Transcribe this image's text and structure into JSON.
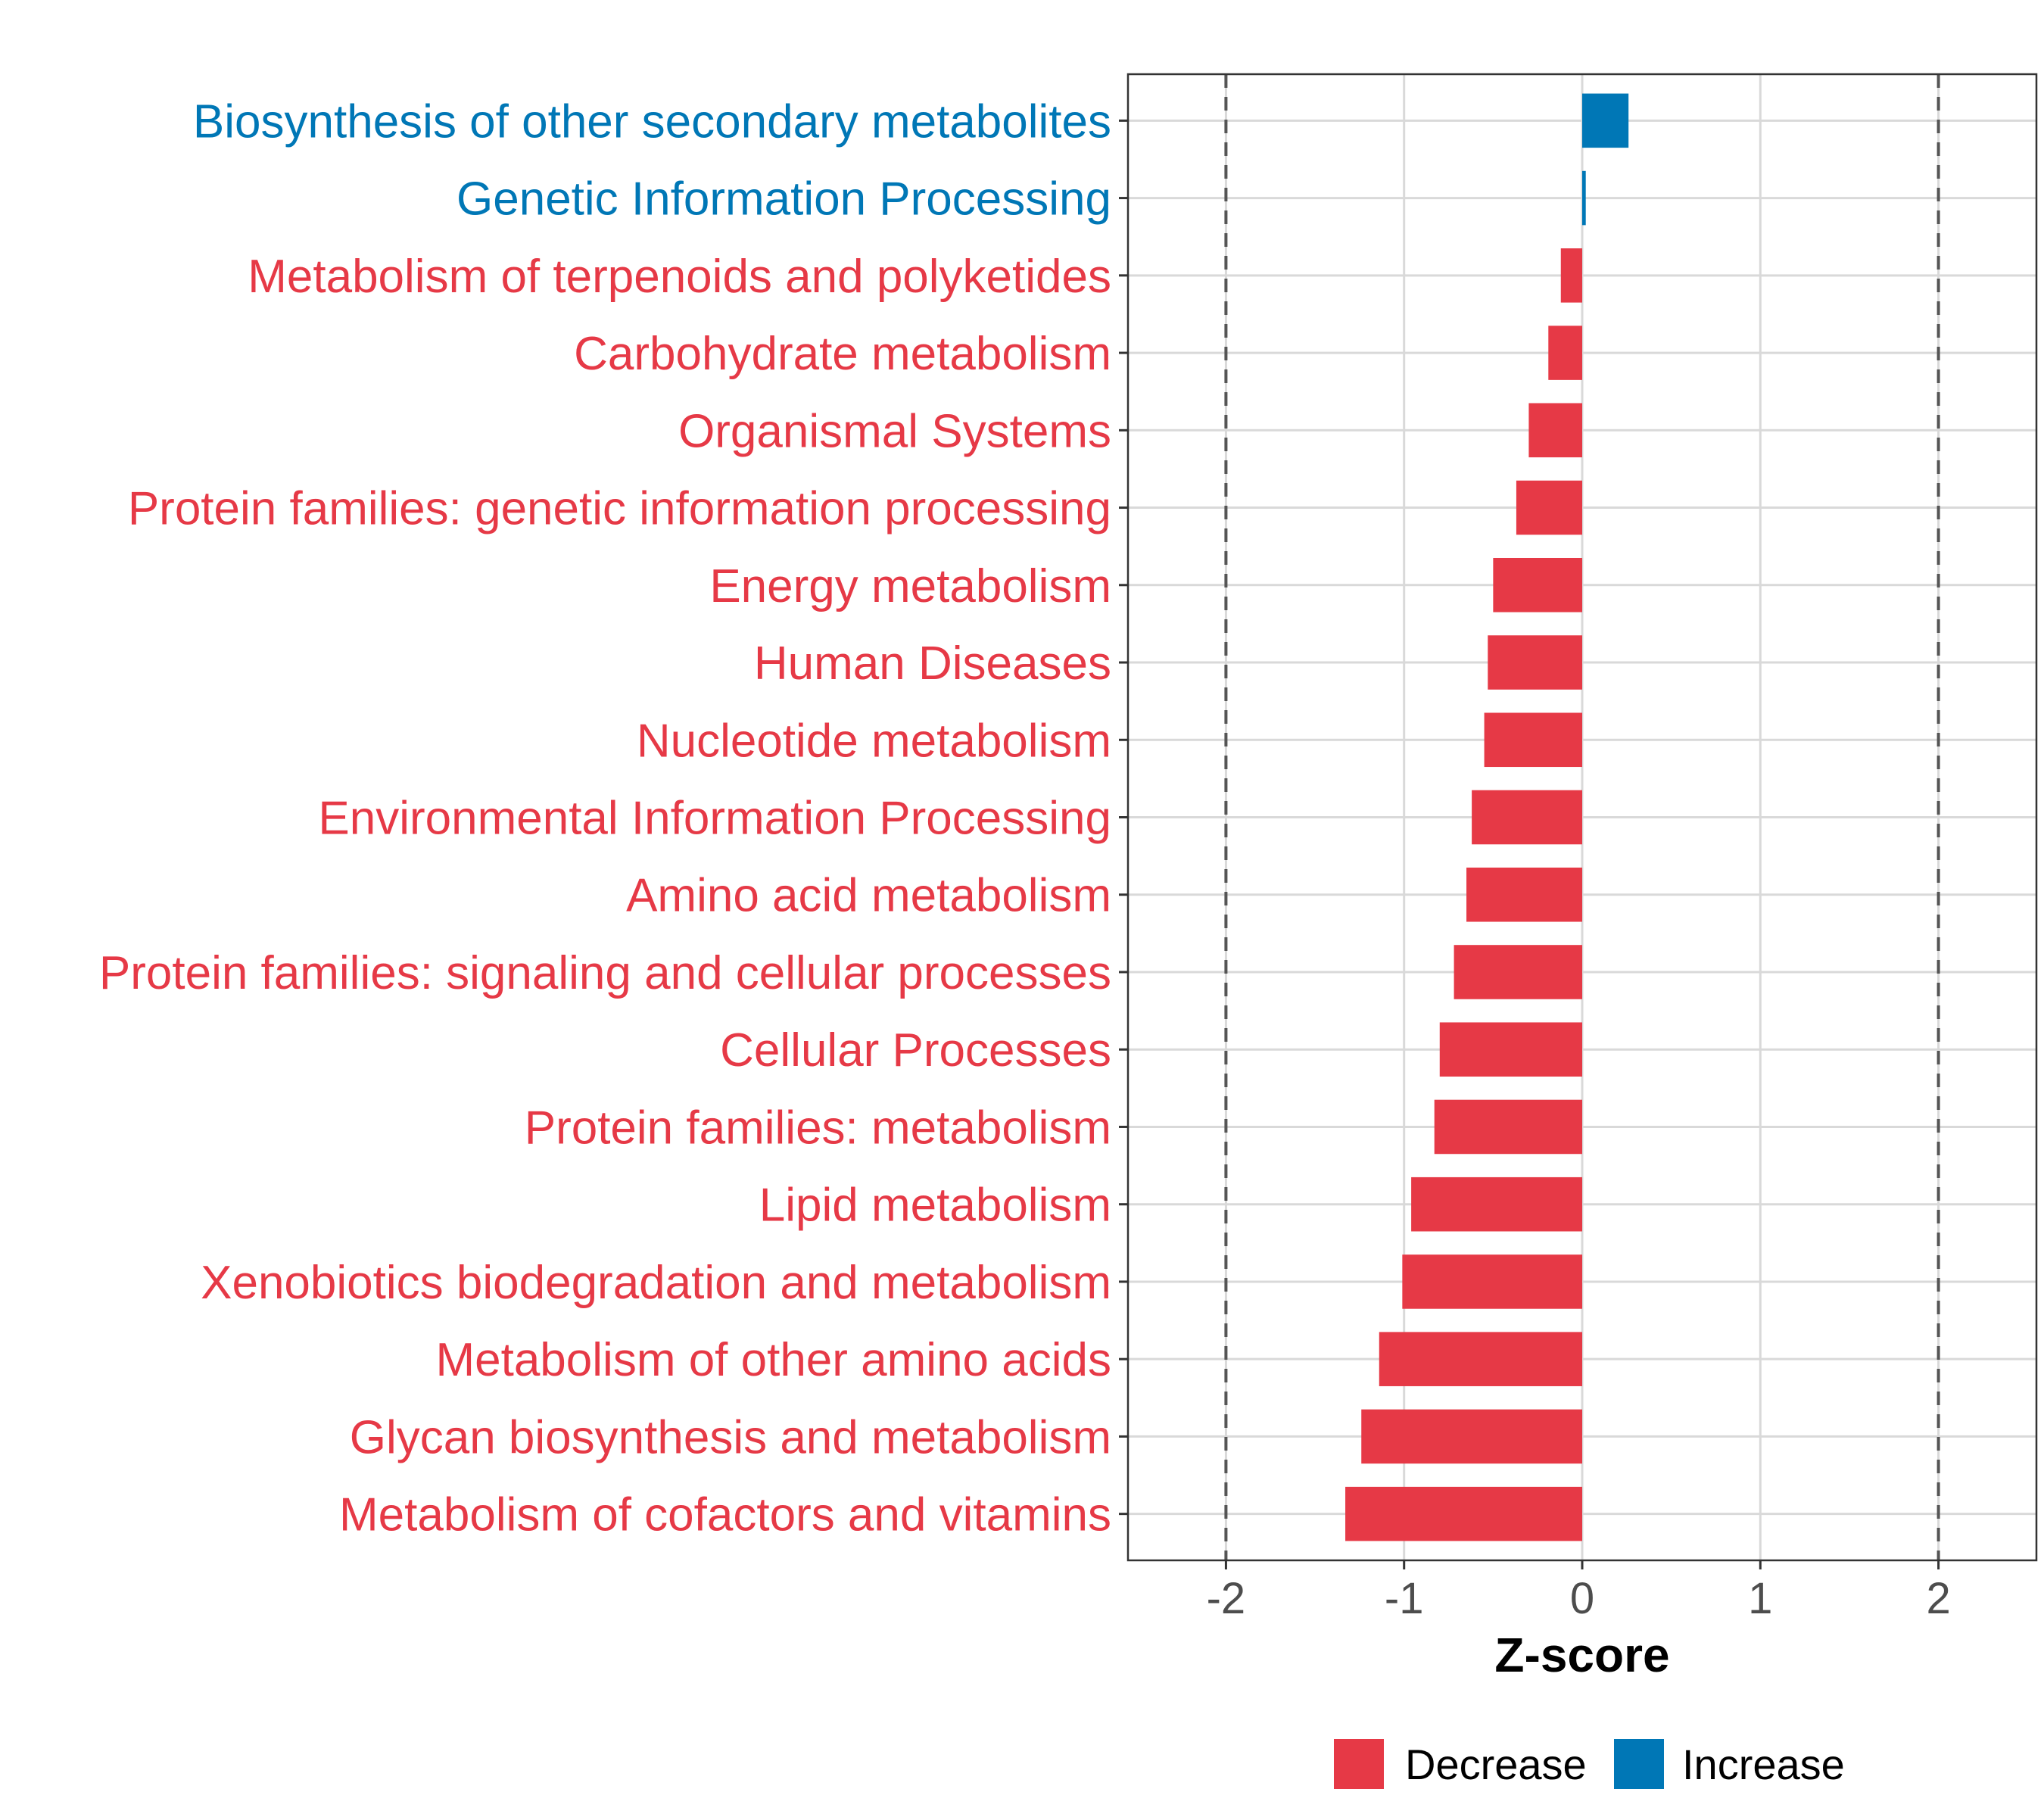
{
  "chart_data": {
    "type": "bar",
    "orientation": "horizontal",
    "title": "",
    "xlabel": "Z-score",
    "ylabel": "",
    "xlim": [
      -2.55,
      2.55
    ],
    "xticks": [
      -2,
      -1,
      0,
      1,
      2
    ],
    "xtick_labels": [
      "-2",
      "-1",
      "0",
      "1",
      "2"
    ],
    "reference_lines": [
      -2,
      2
    ],
    "grid": true,
    "categories": [
      "Biosynthesis of other secondary metabolites",
      "Genetic Information Processing",
      "Metabolism of terpenoids and polyketides",
      "Carbohydrate metabolism",
      "Organismal Systems",
      "Protein families: genetic information processing",
      "Energy metabolism",
      "Human Diseases",
      "Nucleotide metabolism",
      "Environmental Information Processing",
      "Amino acid metabolism",
      "Protein families: signaling and cellular processes",
      "Cellular Processes",
      "Protein families: metabolism",
      "Lipid metabolism",
      "Xenobiotics biodegradation and metabolism",
      "Metabolism of other amino acids",
      "Glycan biosynthesis and metabolism",
      "Metabolism of cofactors and vitamins"
    ],
    "values": [
      0.26,
      0.02,
      -0.12,
      -0.19,
      -0.3,
      -0.37,
      -0.5,
      -0.53,
      -0.55,
      -0.62,
      -0.65,
      -0.72,
      -0.8,
      -0.83,
      -0.96,
      -1.01,
      -1.14,
      -1.24,
      -1.33
    ],
    "groups": [
      "Increase",
      "Increase",
      "Decrease",
      "Decrease",
      "Decrease",
      "Decrease",
      "Decrease",
      "Decrease",
      "Decrease",
      "Decrease",
      "Decrease",
      "Decrease",
      "Decrease",
      "Decrease",
      "Decrease",
      "Decrease",
      "Decrease",
      "Decrease",
      "Decrease"
    ],
    "legend": {
      "position": "bottom",
      "entries": [
        {
          "label": "Decrease",
          "color": "#E63946"
        },
        {
          "label": "Increase",
          "color": "#0077B6"
        }
      ]
    }
  },
  "colors": {
    "decrease": "#E63946",
    "increase": "#0077B6",
    "grid": "#D9D9D9",
    "reference_line": "#555555"
  }
}
